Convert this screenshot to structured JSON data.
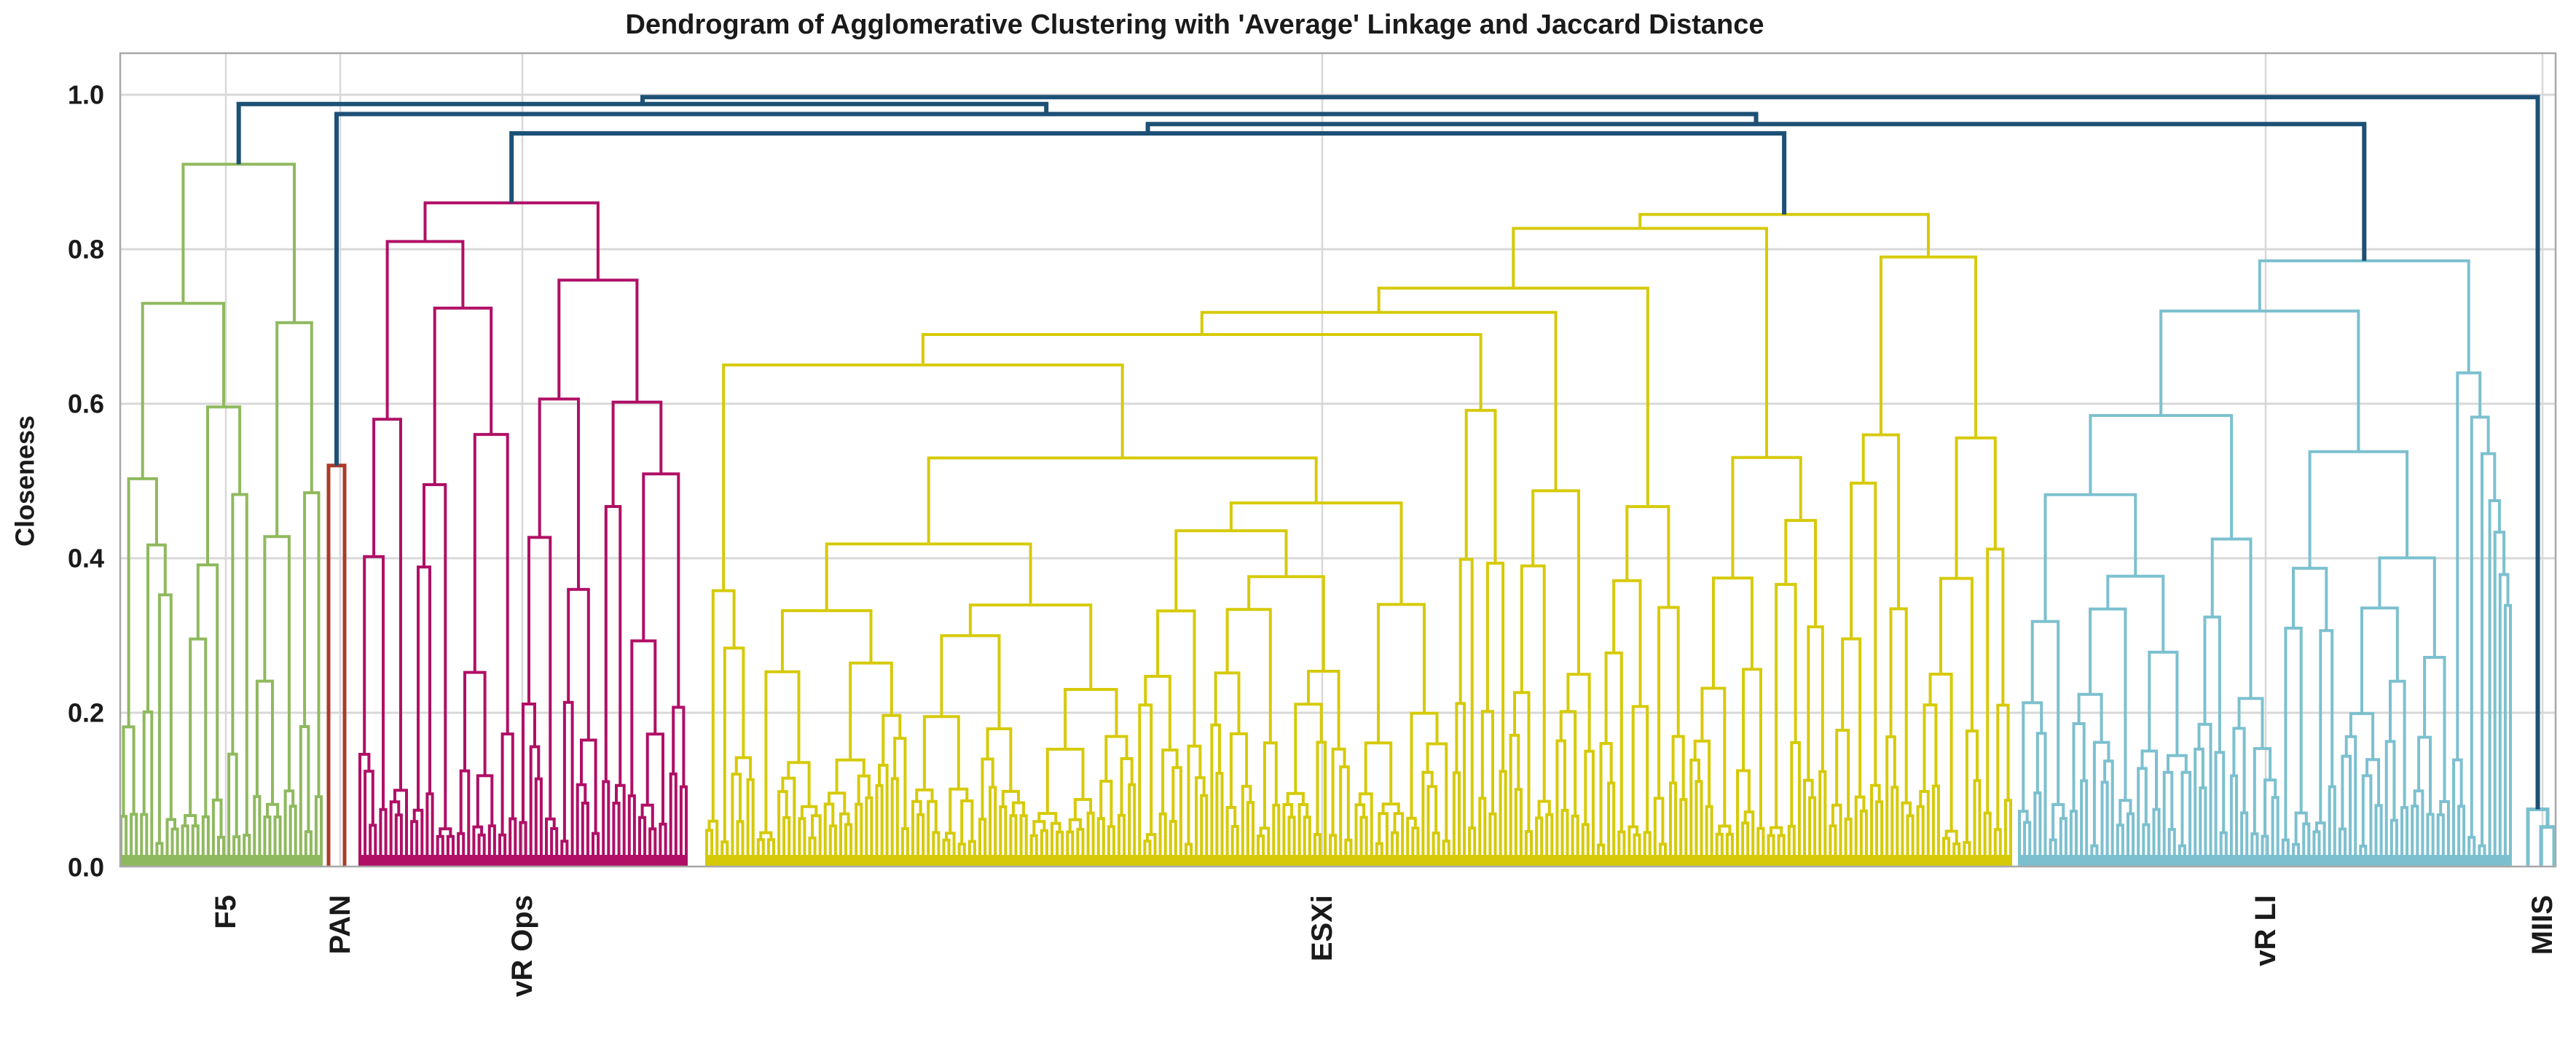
{
  "chart_data": {
    "type": "dendrogram",
    "title": "Dendrogram of Agglomerative Clustering with 'Average' Linkage and Jaccard Distance",
    "ylabel": "Closeness",
    "xlabel": "",
    "ylim": [
      0.0,
      1.05
    ],
    "yticks": [
      0.0,
      0.2,
      0.4,
      0.6,
      0.8,
      1.0
    ],
    "ytick_labels": [
      "0.0",
      "0.2",
      "0.4",
      "0.6",
      "0.8",
      "1.0"
    ],
    "grid": true,
    "grid_color": "#d8d8d8",
    "spine_color": "#a8a8a8",
    "text_color": "#1a1a1a",
    "above_threshold_color": "#1d5076",
    "clusters": [
      {
        "label": "F5",
        "label_x": 310,
        "color": "#8fb95e",
        "n_leaves": 40,
        "x_range": [
          166,
          441
        ],
        "top_height": 0.91,
        "top_split": {
          "fraction": 0.65,
          "child_heights": [
            0.73,
            0.705
          ]
        }
      },
      {
        "label": "PAN",
        "label_x": 467,
        "color": "#ad3a2a",
        "n_leaves": 2,
        "x_range": [
          451,
          473
        ],
        "top_height": 0.52
      },
      {
        "label": "vR Ops",
        "label_x": 717,
        "color": "#b00f66",
        "n_leaves": 64,
        "x_range": [
          494,
          942
        ],
        "top_height": 0.86,
        "top_split": {
          "fraction": 0.48,
          "child_heights": [
            0.81,
            0.76
          ]
        }
      },
      {
        "label": "ESXi",
        "label_x": 1815,
        "color": "#d6ca08",
        "n_leaves": 254,
        "x_range": [
          970,
          2760
        ],
        "top_height": 0.845,
        "top_split": {
          "fraction": 0.86,
          "child_heights": [
            0.827,
            0.79
          ]
        }
      },
      {
        "label": "vR LI",
        "label_x": 3110,
        "color": "#7cc0cf",
        "n_leaves": 96,
        "x_range": [
          2772,
          3446
        ],
        "top_height": 0.785,
        "top_split": {
          "fraction": 0.875,
          "child_heights": [
            0.72,
            0.64
          ]
        },
        "right_cascade": true
      },
      {
        "label": "MIIS",
        "label_x": 3490,
        "color": "#7cc0cf",
        "n_leaves": 3,
        "x_range": [
          3470,
          3506
        ],
        "top_height": 0.075
      }
    ],
    "merges": [
      {
        "left": "vR Ops",
        "right": "ESXi",
        "height": 0.95
      },
      {
        "left": "@group",
        "right": "vR LI",
        "height": 0.962
      },
      {
        "left": "PAN",
        "right": "@group",
        "height": 0.975
      },
      {
        "left": "F5",
        "right": "@group",
        "height": 0.988
      },
      {
        "left": "@group",
        "right": "MIIS",
        "height": 0.997
      }
    ]
  }
}
